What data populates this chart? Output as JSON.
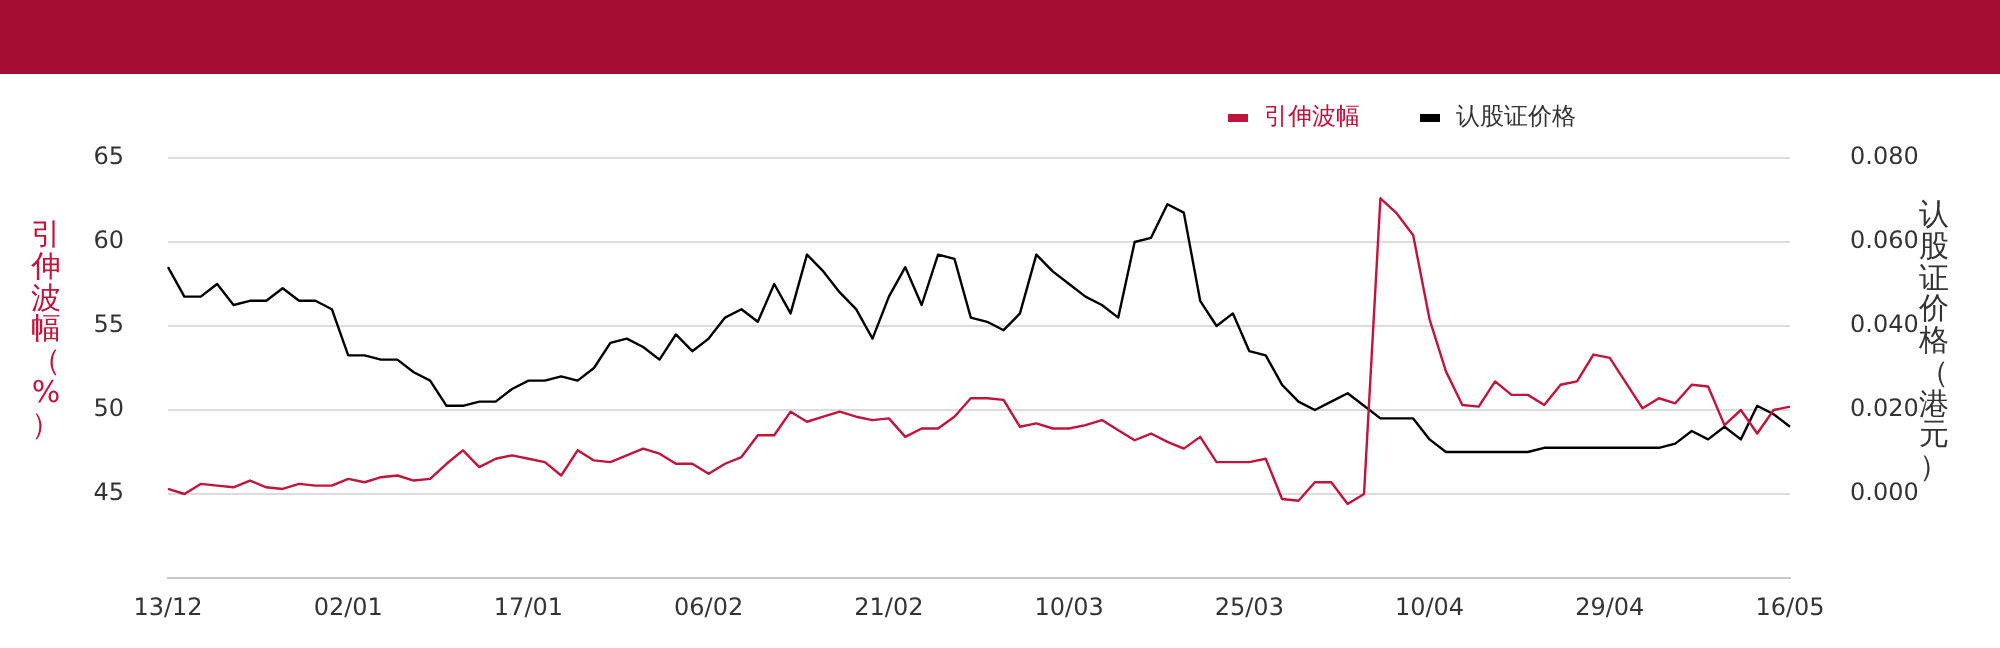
{
  "chart_data": {
    "type": "line",
    "categories": [
      "13/12",
      null,
      null,
      null,
      null,
      null,
      null,
      null,
      null,
      null,
      null,
      "02/01",
      null,
      null,
      null,
      null,
      null,
      null,
      null,
      null,
      null,
      null,
      "17/01",
      null,
      null,
      null,
      null,
      null,
      null,
      null,
      null,
      null,
      null,
      "06/02",
      null,
      null,
      null,
      null,
      null,
      null,
      null,
      null,
      null,
      null,
      "21/02",
      null,
      null,
      null,
      null,
      null,
      null,
      null,
      null,
      null,
      null,
      "10/03",
      null,
      null,
      null,
      null,
      null,
      null,
      null,
      null,
      null,
      null,
      "25/03",
      null,
      null,
      null,
      null,
      null,
      null,
      null,
      null,
      null,
      null,
      "10/04",
      null,
      null,
      null,
      null,
      null,
      null,
      null,
      null,
      null,
      null,
      "29/04",
      null,
      null,
      null,
      null,
      null,
      null,
      null,
      null,
      null,
      null,
      "16/05"
    ],
    "series": [
      {
        "name": "引伸波幅",
        "color": "#c0143c",
        "values": [
          45.3,
          45.0,
          45.6,
          45.5,
          45.4,
          45.8,
          45.4,
          45.3,
          45.6,
          45.5,
          45.5,
          45.9,
          45.7,
          46.0,
          46.1,
          45.8,
          45.9,
          46.8,
          47.6,
          46.6,
          47.1,
          47.3,
          47.1,
          46.9,
          46.1,
          47.6,
          47.0,
          46.9,
          47.3,
          47.7,
          47.4,
          46.8,
          46.8,
          46.2,
          46.8,
          47.2,
          48.5,
          48.5,
          49.9,
          49.3,
          49.6,
          49.9,
          49.6,
          49.4,
          49.5,
          48.4,
          48.9,
          48.9,
          49.6,
          50.7,
          50.7,
          50.6,
          49.0,
          49.2,
          48.9,
          48.9,
          49.1,
          49.4,
          48.8,
          48.2,
          48.6,
          48.1,
          47.7,
          48.4,
          46.9,
          46.9,
          46.9,
          47.1,
          44.7,
          44.6,
          45.7,
          45.7,
          44.4,
          45.0,
          62.6,
          61.7,
          60.4,
          55.4,
          52.3,
          50.3,
          50.2,
          51.7,
          50.9,
          50.9,
          50.3,
          51.5,
          51.7,
          53.3,
          53.1,
          51.6,
          50.1,
          50.7,
          50.4,
          51.5,
          51.4,
          49.1,
          50.0,
          48.6,
          50.0,
          50.2
        ]
      },
      {
        "name": "认股证价格",
        "color": "#000000",
        "axis": "y2",
        "values": [
          0.054,
          0.047,
          0.047,
          0.05,
          0.045,
          0.046,
          0.046,
          0.049,
          0.046,
          0.046,
          0.044,
          0.033,
          0.033,
          0.032,
          0.032,
          0.029,
          0.027,
          0.021,
          0.021,
          0.022,
          0.022,
          0.025,
          0.027,
          0.027,
          0.028,
          0.027,
          0.03,
          0.036,
          0.037,
          0.035,
          0.032,
          0.038,
          0.034,
          0.037,
          0.042,
          0.044,
          0.041,
          0.05,
          0.043,
          0.057,
          0.053,
          0.048,
          0.044,
          0.037,
          0.047,
          0.054,
          0.045,
          0.057,
          0.056,
          0.042,
          0.041,
          0.039,
          0.043,
          0.057,
          0.053,
          0.05,
          0.047,
          0.045,
          0.042,
          0.06,
          0.061,
          0.069,
          0.067,
          0.046,
          0.04,
          0.043,
          0.034,
          0.033,
          0.026,
          0.022,
          0.02,
          0.022,
          0.024,
          0.021,
          0.018,
          0.018,
          0.018,
          0.013,
          0.01,
          0.01,
          0.01,
          0.01,
          0.01,
          0.01,
          0.011,
          0.011,
          0.011,
          0.011,
          0.011,
          0.011,
          0.011,
          0.011,
          0.012,
          0.015,
          0.013,
          0.016,
          0.013,
          0.021,
          0.019,
          0.016
        ]
      }
    ],
    "ylabel": "引伸波幅（%）",
    "y2label": "认股证价格（港元）",
    "ylim": [
      40,
      65
    ],
    "yticks": [
      45,
      50,
      55,
      60,
      65
    ],
    "y2lim": [
      -0.02,
      0.08
    ],
    "y2ticks": [
      {
        "value": 0,
        "label": "0.000"
      },
      {
        "value": 0.02,
        "label": "0.020"
      },
      {
        "value": 0.04,
        "label": "0.040"
      },
      {
        "value": 0.06,
        "label": "0.060"
      },
      {
        "value": 0.08,
        "label": "0.080"
      }
    ],
    "grid": "y",
    "legend": "top right",
    "marker": "none",
    "line_style": "solid"
  }
}
